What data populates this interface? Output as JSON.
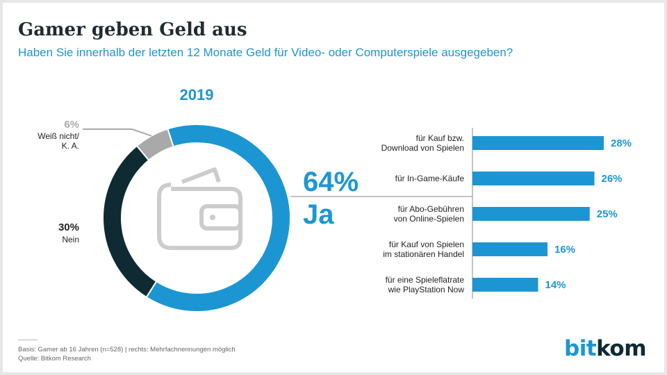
{
  "title": "Gamer geben Geld aus",
  "subtitle": "Haben Sie innerhalb der letzten 12 Monate Geld für Video- oder Computerspiele ausgegeben?",
  "footnote": {
    "basis": "Basis: Gamer ab 16 Jahren (n=528) | rechts: Mehrfachnennungen möglich",
    "source": "Quelle: Bitkom Research"
  },
  "logo": {
    "part1": "bit",
    "part2": "kom"
  },
  "colors": {
    "blue": "#1c96d3",
    "dark": "#0f2a33",
    "grey": "#a9a9a9",
    "icon": "#cccccc"
  },
  "icon": "wallet-icon",
  "chart_data": [
    {
      "type": "pie",
      "title": "2019",
      "slices": [
        {
          "label": "Ja",
          "value": 64,
          "value_label": "64%",
          "color": "#1c96d3"
        },
        {
          "label": "Nein",
          "value": 30,
          "value_label": "30%",
          "color": "#0f2a33"
        },
        {
          "label": "Weiß nicht/ K. A.",
          "label_lines": [
            "Weiß nicht/",
            "K. A."
          ],
          "value": 6,
          "value_label": "6%",
          "color": "#a9a9a9"
        }
      ]
    },
    {
      "type": "bar",
      "orientation": "horizontal",
      "categories": [
        "für Kauf bzw. Download von Spielen",
        "für In-Game-Käufe",
        "für Abo-Gebühren von Online-Spielen",
        "für Kauf von Spielen im stationären Handel",
        "für eine Spieleflatrate wie PlayStation Now"
      ],
      "category_lines": [
        [
          "für Kauf bzw.",
          "Download von Spielen"
        ],
        [
          "für In-Game-Käufe"
        ],
        [
          "für Abo-Gebühren",
          "von Online-Spielen"
        ],
        [
          "für Kauf von Spielen",
          "im stationären Handel"
        ],
        [
          "für eine Spieleflatrate",
          "wie PlayStation Now"
        ]
      ],
      "values": [
        28,
        26,
        25,
        16,
        14
      ],
      "value_labels": [
        "28%",
        "26%",
        "25%",
        "16%",
        "14%"
      ],
      "color": "#1c96d3"
    }
  ]
}
